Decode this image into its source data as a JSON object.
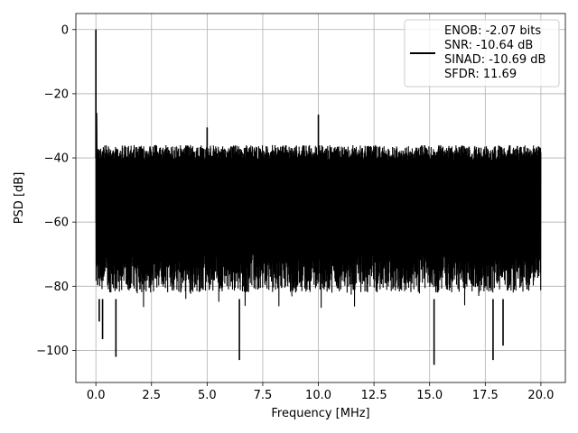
{
  "chart_data": {
    "type": "line",
    "xlabel": "Frequency [MHz]",
    "ylabel": "PSD [dB]",
    "xlim": [
      -0.9,
      21.1
    ],
    "ylim": [
      -110,
      5
    ],
    "x_ticks": [
      0,
      2.5,
      5,
      7.5,
      10,
      12.5,
      15,
      17.5,
      20
    ],
    "x_tick_labels": [
      "0.0",
      "2.5",
      "5.0",
      "7.5",
      "10.0",
      "12.5",
      "15.0",
      "17.5",
      "20.0"
    ],
    "y_ticks": [
      0,
      -20,
      -40,
      -60,
      -80,
      -100
    ],
    "y_tick_labels": [
      "0",
      "−20",
      "−40",
      "−60",
      "−80",
      "−100"
    ],
    "grid": true,
    "legend_position": "top-right",
    "series": [
      {
        "name": "ENOB: -2.07 bits\nSNR: -10.64 dB\nSINAD: -10.69 dB\nSFDR: 11.69",
        "color": "#000000",
        "x_range": [
          0,
          20
        ],
        "noise_floor_db": [
          -36,
          -88
        ],
        "peaks": [
          {
            "x": 0.0,
            "y": 0
          },
          {
            "x": 5.0,
            "y": -30.5
          },
          {
            "x": 10.0,
            "y": -26.5
          }
        ],
        "notable_dips": [
          {
            "x": 0.15,
            "y": -91
          },
          {
            "x": 0.3,
            "y": -96.5
          },
          {
            "x": 0.9,
            "y": -102
          },
          {
            "x": 6.45,
            "y": -103
          },
          {
            "x": 15.2,
            "y": -104.5
          },
          {
            "x": 17.85,
            "y": -103
          },
          {
            "x": 18.3,
            "y": -98.5
          }
        ]
      }
    ]
  },
  "legend": {
    "lines": [
      "ENOB: -2.07 bits",
      "SNR: -10.64 dB",
      "SINAD: -10.69 dB",
      "SFDR: 11.69"
    ],
    "line_color": "#000000"
  }
}
